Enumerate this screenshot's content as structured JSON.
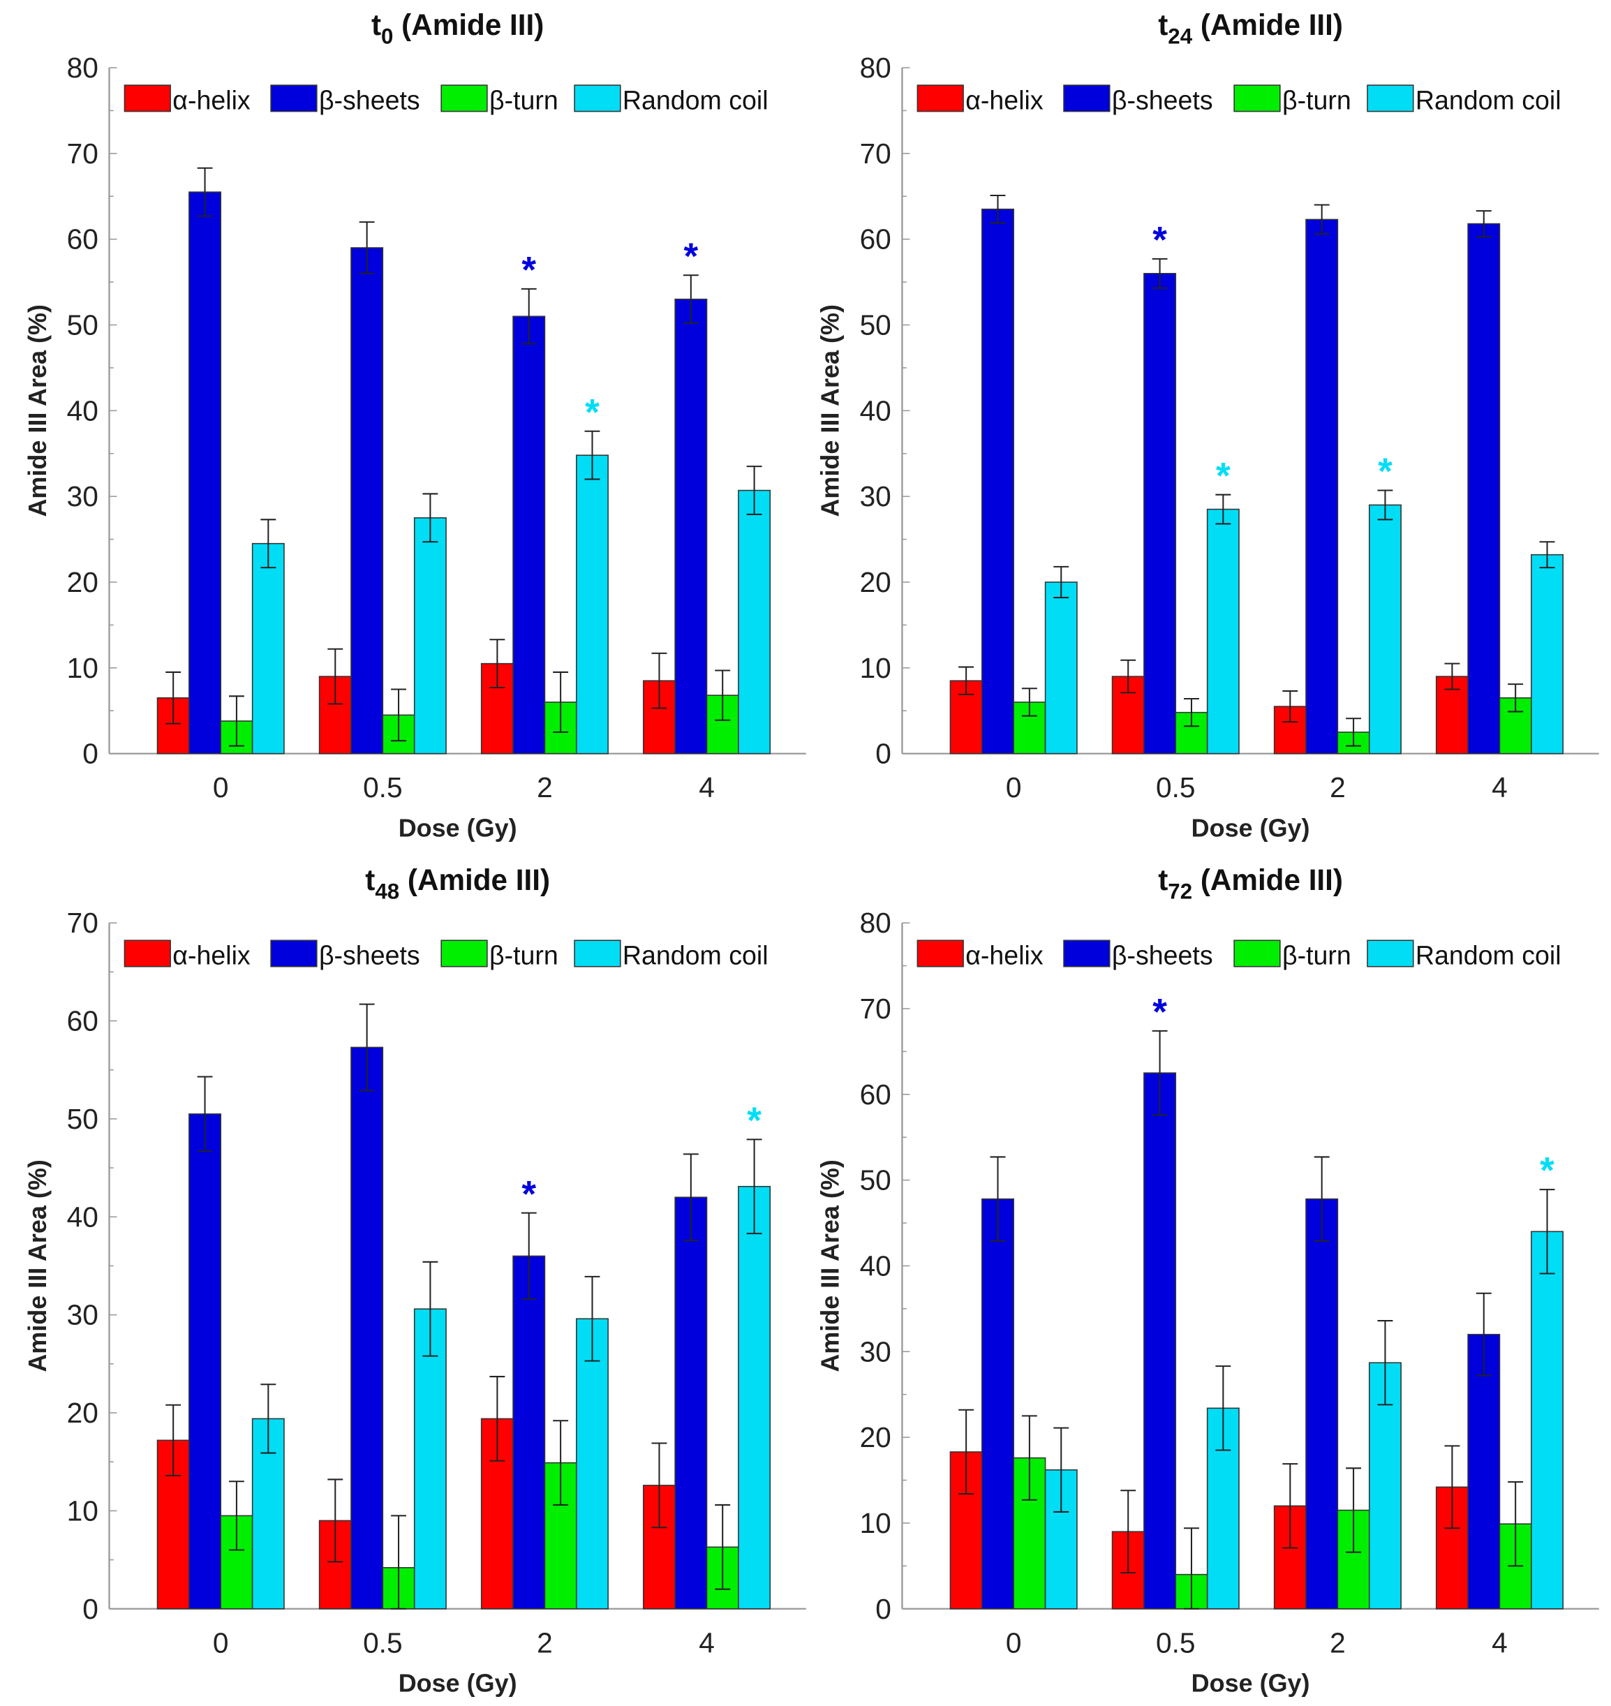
{
  "chart_data": [
    {
      "type": "bar",
      "title": "t0 (Amide III)",
      "title_main": "t",
      "title_sub": "0",
      "title_rest": " (Amide III)",
      "xlabel": "Dose (Gy)",
      "ylabel": "Amide III Area (%)",
      "categories": [
        "0",
        "0.5",
        "2",
        "4"
      ],
      "ylim": [
        0,
        80
      ],
      "yticks": [
        0,
        10,
        20,
        30,
        40,
        50,
        60,
        70,
        80
      ],
      "series": [
        {
          "name": "α-helix",
          "color": "#ff0000",
          "values": [
            6.5,
            9,
            10.5,
            8.5
          ],
          "errors": [
            3,
            3.2,
            2.8,
            3.2
          ]
        },
        {
          "name": "β-sheets",
          "color": "#0000dd",
          "values": [
            65.5,
            59,
            51,
            53
          ],
          "errors": [
            2.8,
            3,
            3.2,
            2.8
          ]
        },
        {
          "name": "β-turn",
          "color": "#00ee00",
          "values": [
            3.8,
            4.5,
            6,
            6.8
          ],
          "errors": [
            2.9,
            3,
            3.5,
            2.9
          ]
        },
        {
          "name": "Random coil",
          "color": "#00ddf5",
          "values": [
            24.5,
            27.5,
            34.8,
            30.7
          ],
          "errors": [
            2.8,
            2.8,
            2.8,
            2.8
          ]
        }
      ],
      "significance": [
        {
          "category": "2",
          "series": "β-sheets"
        },
        {
          "category": "2",
          "series": "Random coil"
        },
        {
          "category": "4",
          "series": "β-sheets"
        }
      ],
      "legend": "top"
    },
    {
      "type": "bar",
      "title": "t24 (Amide III)",
      "title_main": "t",
      "title_sub": "24",
      "title_rest": " (Amide III)",
      "xlabel": "Dose (Gy)",
      "ylabel": "Amide III Area (%)",
      "categories": [
        "0",
        "0.5",
        "2",
        "4"
      ],
      "ylim": [
        0,
        80
      ],
      "yticks": [
        0,
        10,
        20,
        30,
        40,
        50,
        60,
        70,
        80
      ],
      "series": [
        {
          "name": "α-helix",
          "color": "#ff0000",
          "values": [
            8.5,
            9,
            5.5,
            9
          ],
          "errors": [
            1.6,
            1.9,
            1.8,
            1.5
          ]
        },
        {
          "name": "β-sheets",
          "color": "#0000dd",
          "values": [
            63.5,
            56,
            62.3,
            61.8
          ],
          "errors": [
            1.6,
            1.7,
            1.7,
            1.5
          ]
        },
        {
          "name": "β-turn",
          "color": "#00ee00",
          "values": [
            6,
            4.8,
            2.5,
            6.5
          ],
          "errors": [
            1.6,
            1.6,
            1.6,
            1.6
          ]
        },
        {
          "name": "Random coil",
          "color": "#00ddf5",
          "values": [
            20,
            28.5,
            29,
            23.2
          ],
          "errors": [
            1.8,
            1.7,
            1.7,
            1.5
          ]
        }
      ],
      "significance": [
        {
          "category": "0.5",
          "series": "β-sheets"
        },
        {
          "category": "0.5",
          "series": "Random coil"
        },
        {
          "category": "2",
          "series": "Random coil"
        }
      ],
      "legend": "top"
    },
    {
      "type": "bar",
      "title": "t48 (Amide III)",
      "title_main": "t",
      "title_sub": "48",
      "title_rest": " (Amide III)",
      "xlabel": "Dose (Gy)",
      "ylabel": "Amide III Area (%)",
      "categories": [
        "0",
        "0.5",
        "2",
        "4"
      ],
      "ylim": [
        0,
        70
      ],
      "yticks": [
        0,
        10,
        20,
        30,
        40,
        50,
        60,
        70
      ],
      "series": [
        {
          "name": "α-helix",
          "color": "#ff0000",
          "values": [
            17.2,
            9,
            19.4,
            12.6
          ],
          "errors": [
            3.6,
            4.2,
            4.3,
            4.3
          ]
        },
        {
          "name": "β-sheets",
          "color": "#0000dd",
          "values": [
            50.5,
            57.3,
            36,
            42
          ],
          "errors": [
            3.8,
            4.4,
            4.4,
            4.4
          ]
        },
        {
          "name": "β-turn",
          "color": "#00ee00",
          "values": [
            9.5,
            4.2,
            14.9,
            6.3
          ],
          "errors": [
            3.5,
            5.3,
            4.3,
            4.3
          ]
        },
        {
          "name": "Random coil",
          "color": "#00ddf5",
          "values": [
            19.4,
            30.6,
            29.6,
            43.1
          ],
          "errors": [
            3.5,
            4.8,
            4.3,
            4.8
          ]
        }
      ],
      "significance": [
        {
          "category": "2",
          "series": "β-sheets"
        },
        {
          "category": "4",
          "series": "Random coil"
        }
      ],
      "legend": "top"
    },
    {
      "type": "bar",
      "title": "t72 (Amide III)",
      "title_main": "t",
      "title_sub": "72",
      "title_rest": " (Amide III)",
      "xlabel": "Dose (Gy)",
      "ylabel": "Amide III Area (%)",
      "categories": [
        "0",
        "0.5",
        "2",
        "4"
      ],
      "ylim": [
        0,
        80
      ],
      "yticks": [
        0,
        10,
        20,
        30,
        40,
        50,
        60,
        70,
        80
      ],
      "series": [
        {
          "name": "α-helix",
          "color": "#ff0000",
          "values": [
            18.3,
            9,
            12,
            14.2
          ],
          "errors": [
            4.9,
            4.8,
            4.9,
            4.8
          ]
        },
        {
          "name": "β-sheets",
          "color": "#0000dd",
          "values": [
            47.8,
            62.5,
            47.8,
            32
          ],
          "errors": [
            4.9,
            4.9,
            4.9,
            4.8
          ]
        },
        {
          "name": "β-turn",
          "color": "#00ee00",
          "values": [
            17.6,
            4,
            11.5,
            9.9
          ],
          "errors": [
            4.9,
            5.4,
            4.9,
            4.9
          ]
        },
        {
          "name": "Random coil",
          "color": "#00ddf5",
          "values": [
            16.2,
            23.4,
            28.7,
            44
          ],
          "errors": [
            4.9,
            4.9,
            4.9,
            4.9
          ]
        }
      ],
      "significance": [
        {
          "category": "0.5",
          "series": "β-sheets"
        },
        {
          "category": "4",
          "series": "Random coil"
        }
      ],
      "legend": "top"
    }
  ]
}
